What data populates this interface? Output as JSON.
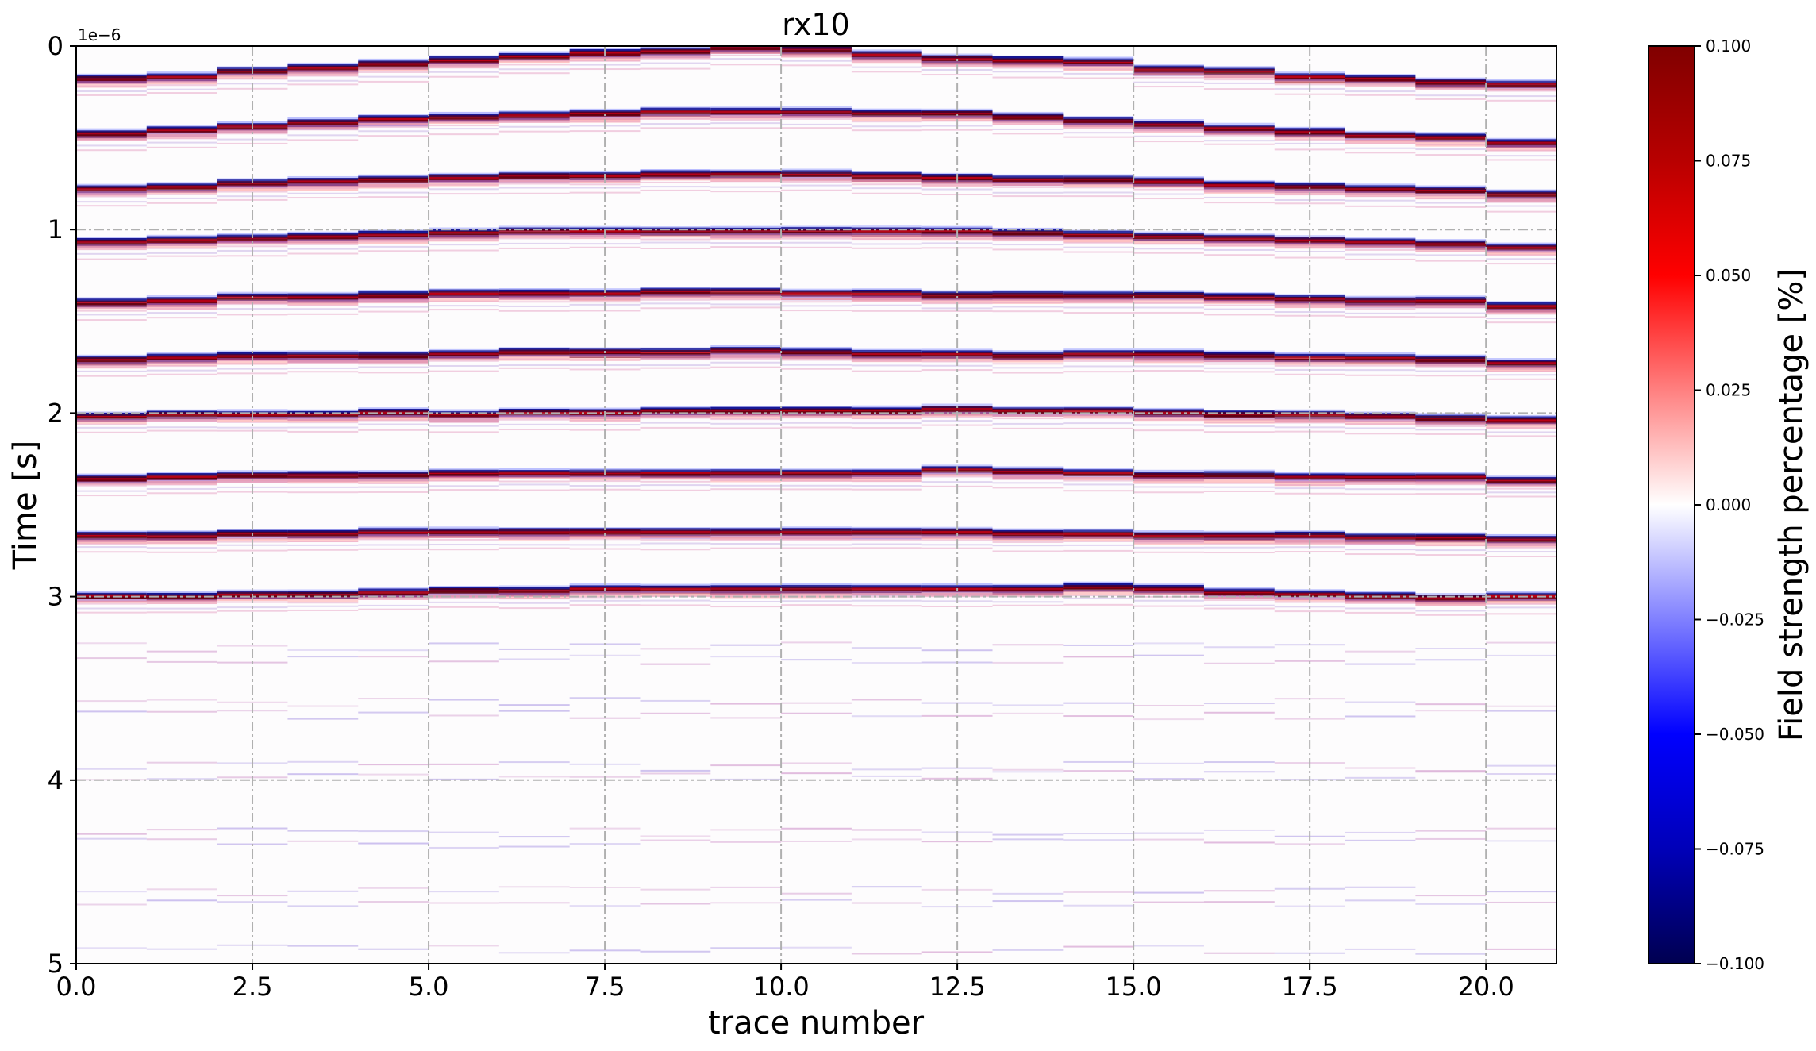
{
  "chart_data": {
    "type": "heatmap",
    "title": "rx10",
    "xlabel": "trace number",
    "ylabel": "Time [s]",
    "y_offset_label": "1e−6",
    "xlim": [
      0,
      21
    ],
    "ylim": [
      0,
      5
    ],
    "y_axis_inverted": true,
    "y_scale_multiplier": 1e-06,
    "grid": true,
    "x_ticks": [
      0.0,
      2.5,
      5.0,
      7.5,
      10.0,
      12.5,
      15.0,
      17.5,
      20.0
    ],
    "x_tick_labels": [
      "0.0",
      "2.5",
      "5.0",
      "7.5",
      "10.0",
      "12.5",
      "15.0",
      "17.5",
      "20.0"
    ],
    "y_ticks": [
      0,
      1,
      2,
      3,
      4,
      5
    ],
    "y_tick_labels": [
      "0",
      "1",
      "2",
      "3",
      "4",
      "5"
    ],
    "colormap": "seismic",
    "colorbar": {
      "label": "Field strength percentage [%]",
      "vmin": -0.1,
      "vmax": 0.1,
      "ticks": [
        0.1,
        0.075,
        0.05,
        0.025,
        0.0,
        -0.025,
        -0.05,
        -0.075,
        -0.1
      ],
      "tick_labels": [
        "0.100",
        "0.075",
        "0.050",
        "0.025",
        "0.000",
        "−0.025",
        "−0.050",
        "−0.075",
        "−0.100"
      ]
    },
    "traces": 21,
    "reflector_times_us": {
      "description": "arrival time (microseconds) of each strong reflection band per trace 0..20",
      "bands": [
        [
          0.17,
          0.16,
          0.13,
          0.11,
          0.09,
          0.07,
          0.05,
          0.03,
          0.02,
          0.0,
          0.01,
          0.04,
          0.06,
          0.07,
          0.08,
          0.12,
          0.13,
          0.16,
          0.17,
          0.19,
          0.2
        ],
        [
          0.47,
          0.45,
          0.43,
          0.41,
          0.39,
          0.38,
          0.37,
          0.36,
          0.35,
          0.35,
          0.35,
          0.36,
          0.36,
          0.38,
          0.4,
          0.42,
          0.44,
          0.46,
          0.48,
          0.49,
          0.52
        ],
        [
          0.77,
          0.76,
          0.74,
          0.73,
          0.72,
          0.71,
          0.7,
          0.7,
          0.69,
          0.69,
          0.69,
          0.7,
          0.71,
          0.72,
          0.72,
          0.73,
          0.75,
          0.76,
          0.77,
          0.78,
          0.8
        ],
        [
          1.06,
          1.05,
          1.04,
          1.03,
          1.02,
          1.01,
          1.0,
          1.0,
          1.0,
          1.0,
          1.0,
          1.0,
          1.0,
          1.01,
          1.02,
          1.03,
          1.04,
          1.05,
          1.06,
          1.07,
          1.09
        ],
        [
          1.39,
          1.38,
          1.36,
          1.36,
          1.35,
          1.34,
          1.34,
          1.34,
          1.33,
          1.33,
          1.34,
          1.34,
          1.35,
          1.35,
          1.35,
          1.35,
          1.36,
          1.37,
          1.38,
          1.38,
          1.41
        ],
        [
          1.7,
          1.69,
          1.68,
          1.68,
          1.68,
          1.67,
          1.66,
          1.66,
          1.66,
          1.65,
          1.66,
          1.67,
          1.67,
          1.68,
          1.67,
          1.67,
          1.68,
          1.69,
          1.69,
          1.7,
          1.72
        ],
        [
          2.01,
          2.0,
          2.0,
          2.0,
          1.99,
          2.0,
          1.99,
          1.99,
          1.98,
          1.98,
          1.98,
          1.98,
          1.97,
          1.98,
          1.98,
          1.99,
          2.0,
          2.0,
          2.01,
          2.02,
          2.03
        ],
        [
          2.35,
          2.34,
          2.33,
          2.33,
          2.33,
          2.32,
          2.32,
          2.32,
          2.32,
          2.32,
          2.32,
          2.32,
          2.3,
          2.31,
          2.32,
          2.33,
          2.33,
          2.34,
          2.34,
          2.34,
          2.36
        ],
        [
          2.66,
          2.66,
          2.65,
          2.65,
          2.64,
          2.64,
          2.64,
          2.64,
          2.64,
          2.64,
          2.64,
          2.64,
          2.64,
          2.65,
          2.65,
          2.66,
          2.66,
          2.66,
          2.67,
          2.67,
          2.68
        ],
        [
          2.99,
          2.99,
          2.98,
          2.98,
          2.97,
          2.96,
          2.96,
          2.95,
          2.95,
          2.95,
          2.95,
          2.95,
          2.95,
          2.95,
          2.94,
          2.95,
          2.97,
          2.98,
          2.99,
          3.0,
          2.99
        ]
      ]
    },
    "weak_reflections_us": [
      3.27,
      3.34,
      3.57,
      3.64,
      3.92,
      3.97,
      4.28,
      4.34,
      4.6,
      4.66,
      4.92
    ]
  }
}
